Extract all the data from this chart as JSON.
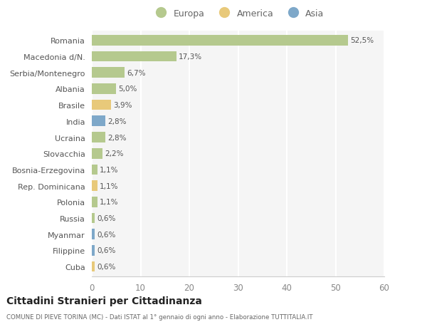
{
  "countries": [
    "Romania",
    "Macedonia d/N.",
    "Serbia/Montenegro",
    "Albania",
    "Brasile",
    "India",
    "Ucraina",
    "Slovacchia",
    "Bosnia-Erzegovina",
    "Rep. Dominicana",
    "Polonia",
    "Russia",
    "Myanmar",
    "Filippine",
    "Cuba"
  ],
  "values": [
    52.5,
    17.3,
    6.7,
    5.0,
    3.9,
    2.8,
    2.8,
    2.2,
    1.1,
    1.1,
    1.1,
    0.6,
    0.6,
    0.6,
    0.6
  ],
  "labels": [
    "52,5%",
    "17,3%",
    "6,7%",
    "5,0%",
    "3,9%",
    "2,8%",
    "2,8%",
    "2,2%",
    "1,1%",
    "1,1%",
    "1,1%",
    "0,6%",
    "0,6%",
    "0,6%",
    "0,6%"
  ],
  "continents": [
    "Europa",
    "Europa",
    "Europa",
    "Europa",
    "America",
    "Asia",
    "Europa",
    "Europa",
    "Europa",
    "America",
    "Europa",
    "Europa",
    "Asia",
    "Asia",
    "America"
  ],
  "colors": {
    "Europa": "#b5c98e",
    "America": "#e8c97a",
    "Asia": "#7ea8c9"
  },
  "xlim": [
    0,
    60
  ],
  "xticks": [
    0,
    10,
    20,
    30,
    40,
    50,
    60
  ],
  "title": "Cittadini Stranieri per Cittadinanza",
  "subtitle": "COMUNE DI PIEVE TORINA (MC) - Dati ISTAT al 1° gennaio di ogni anno - Elaborazione TUTTITALIA.IT",
  "background_color": "#f5f5f5",
  "bar_height": 0.65,
  "legend_order": [
    "Europa",
    "America",
    "Asia"
  ]
}
